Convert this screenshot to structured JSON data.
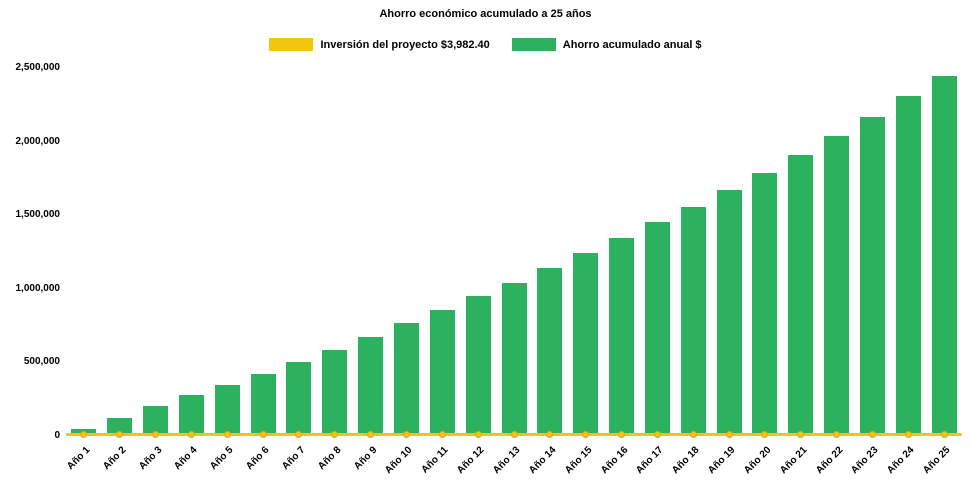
{
  "title": "Ahorro económico acumulado a 25 años",
  "legend": {
    "investment_label": "Inversión del proyecto $3,982.40",
    "savings_label": "Ahorro acumulado anual $"
  },
  "colors": {
    "investment": "#F2C50F",
    "investment_border": "#D9AE0B",
    "savings": "#2CB15F",
    "text": "#000000",
    "background": "#FFFFFF"
  },
  "chart_data": {
    "type": "bar",
    "title": "Ahorro económico acumulado a 25 años",
    "categories": [
      "Año 1",
      "Año 2",
      "Año 3",
      "Año 4",
      "Año 5",
      "Año 6",
      "Año 7",
      "Año 8",
      "Año 9",
      "Año 10",
      "Año 11",
      "Año 12",
      "Año 13",
      "Año 14",
      "Año 15",
      "Año 16",
      "Año 17",
      "Año 18",
      "Año 19",
      "Año 20",
      "Año 21",
      "Año 22",
      "Año 23",
      "Año 24",
      "Año 25"
    ],
    "series": [
      {
        "name": "Inversión del proyecto $3,982.40",
        "type": "line",
        "color": "#F2C50F",
        "values": [
          3982.4,
          3982.4,
          3982.4,
          3982.4,
          3982.4,
          3982.4,
          3982.4,
          3982.4,
          3982.4,
          3982.4,
          3982.4,
          3982.4,
          3982.4,
          3982.4,
          3982.4,
          3982.4,
          3982.4,
          3982.4,
          3982.4,
          3982.4,
          3982.4,
          3982.4,
          3982.4,
          3982.4,
          3982.4
        ]
      },
      {
        "name": "Ahorro acumulado anual $",
        "type": "bar",
        "color": "#2CB15F",
        "values": [
          48000,
          122000,
          203000,
          278000,
          347000,
          421000,
          502000,
          584000,
          671000,
          766000,
          856000,
          950000,
          1040000,
          1141000,
          1243000,
          1345000,
          1454000,
          1556000,
          1671000,
          1787000,
          1908000,
          2037000,
          2166000,
          2308000,
          2443000
        ]
      }
    ],
    "ylim": [
      0,
      2500000
    ],
    "yticks": [
      0,
      500000,
      1000000,
      1500000,
      2000000,
      2500000
    ],
    "ytick_labels": [
      "0",
      "500,000",
      "1,000,000",
      "1,500,000",
      "2,000,000",
      "2,500,000"
    ],
    "grid": false,
    "legend_position": "top"
  }
}
